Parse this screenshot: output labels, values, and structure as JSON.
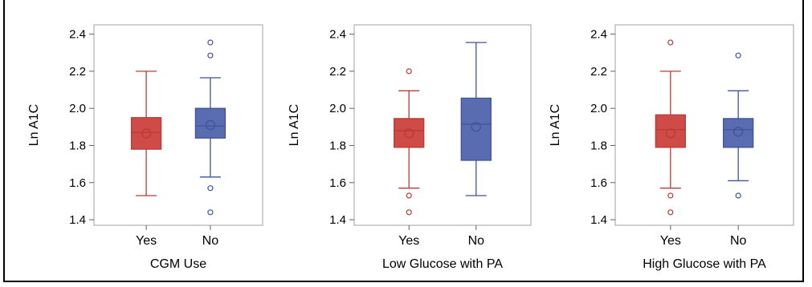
{
  "colors": {
    "yes_fill": "#cf4b48",
    "yes_stroke": "#b83a37",
    "no_fill": "#5a6cb0",
    "no_stroke": "#3f529c",
    "plot_border": "#a0a0a0"
  },
  "chart_data": [
    {
      "type": "box",
      "xlabel": "CGM Use",
      "ylabel": "Ln A1C",
      "ylim": [
        1.37,
        2.45
      ],
      "yticks": [
        "1.4",
        "1.6",
        "1.8",
        "2.0",
        "2.2",
        "2.4"
      ],
      "categories": [
        "Yes",
        "No"
      ],
      "boxes": [
        {
          "category": "Yes",
          "min": 1.53,
          "q1": 1.78,
          "median": 1.87,
          "q3": 1.95,
          "max": 2.2,
          "mean": 1.865,
          "outliers": []
        },
        {
          "category": "No",
          "min": 1.63,
          "q1": 1.84,
          "median": 1.905,
          "q3": 2.0,
          "max": 2.165,
          "mean": 1.91,
          "outliers": [
            2.355,
            2.285,
            1.57,
            1.44
          ]
        }
      ]
    },
    {
      "type": "box",
      "xlabel": "Low Glucose with PA",
      "ylabel": "Ln A1C",
      "ylim": [
        1.37,
        2.45
      ],
      "yticks": [
        "1.4",
        "1.6",
        "1.8",
        "2.0",
        "2.2",
        "2.4"
      ],
      "categories": [
        "Yes",
        "No"
      ],
      "boxes": [
        {
          "category": "Yes",
          "min": 1.57,
          "q1": 1.79,
          "median": 1.88,
          "q3": 1.945,
          "max": 2.095,
          "mean": 1.865,
          "outliers": [
            2.2,
            1.53,
            1.44
          ]
        },
        {
          "category": "No",
          "min": 1.53,
          "q1": 1.72,
          "median": 1.915,
          "q3": 2.055,
          "max": 2.355,
          "mean": 1.9,
          "outliers": []
        }
      ]
    },
    {
      "type": "box",
      "xlabel": "High Glucose with PA",
      "ylabel": "Ln A1C",
      "ylim": [
        1.37,
        2.45
      ],
      "yticks": [
        "1.4",
        "1.6",
        "1.8",
        "2.0",
        "2.2",
        "2.4"
      ],
      "categories": [
        "Yes",
        "No"
      ],
      "boxes": [
        {
          "category": "Yes",
          "min": 1.57,
          "q1": 1.79,
          "median": 1.885,
          "q3": 1.965,
          "max": 2.2,
          "mean": 1.865,
          "outliers": [
            2.355,
            1.53,
            1.44
          ]
        },
        {
          "category": "No",
          "min": 1.61,
          "q1": 1.79,
          "median": 1.885,
          "q3": 1.945,
          "max": 2.095,
          "mean": 1.875,
          "outliers": [
            2.285,
            1.53
          ]
        }
      ]
    }
  ]
}
